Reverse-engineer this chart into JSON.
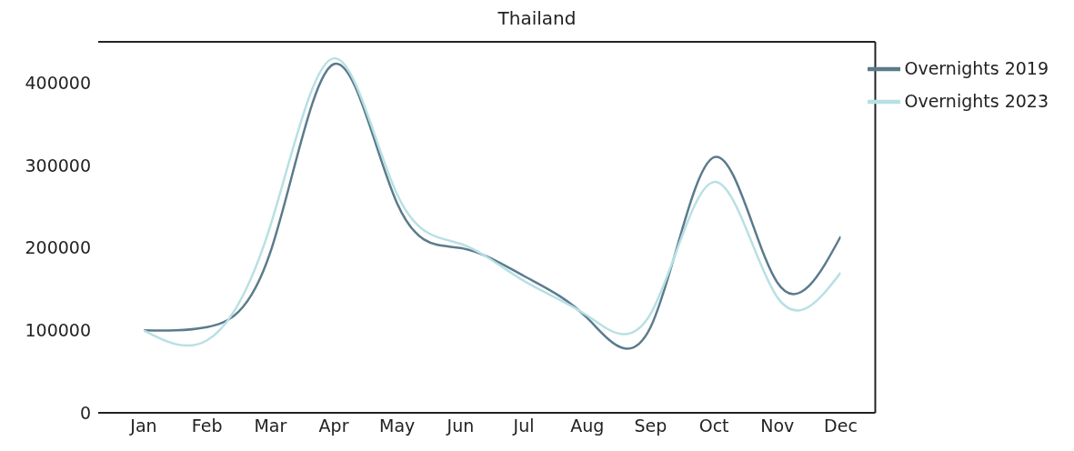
{
  "chart_data": {
    "type": "line",
    "title": "Thailand",
    "categories": [
      "Jan",
      "Feb",
      "Mar",
      "Apr",
      "May",
      "Jun",
      "Jul",
      "Aug",
      "Sep",
      "Oct",
      "Nov",
      "Dec"
    ],
    "series": [
      {
        "name": "Overnights 2019",
        "color": "#5b7b8c",
        "values": [
          100000,
          104000,
          195000,
          423000,
          254000,
          200000,
          166000,
          115000,
          104000,
          310000,
          158000,
          214000
        ]
      },
      {
        "name": "Overnights 2023",
        "color": "#b8e0e4",
        "values": [
          100000,
          88000,
          227000,
          430000,
          265000,
          205000,
          160000,
          118000,
          120000,
          280000,
          140000,
          170000
        ]
      }
    ],
    "ylim": [
      0,
      450000
    ],
    "yticks": [
      0,
      100000,
      200000,
      300000,
      400000
    ],
    "grid": false,
    "legend": "top right",
    "marker": "none",
    "line_style": "solid"
  }
}
